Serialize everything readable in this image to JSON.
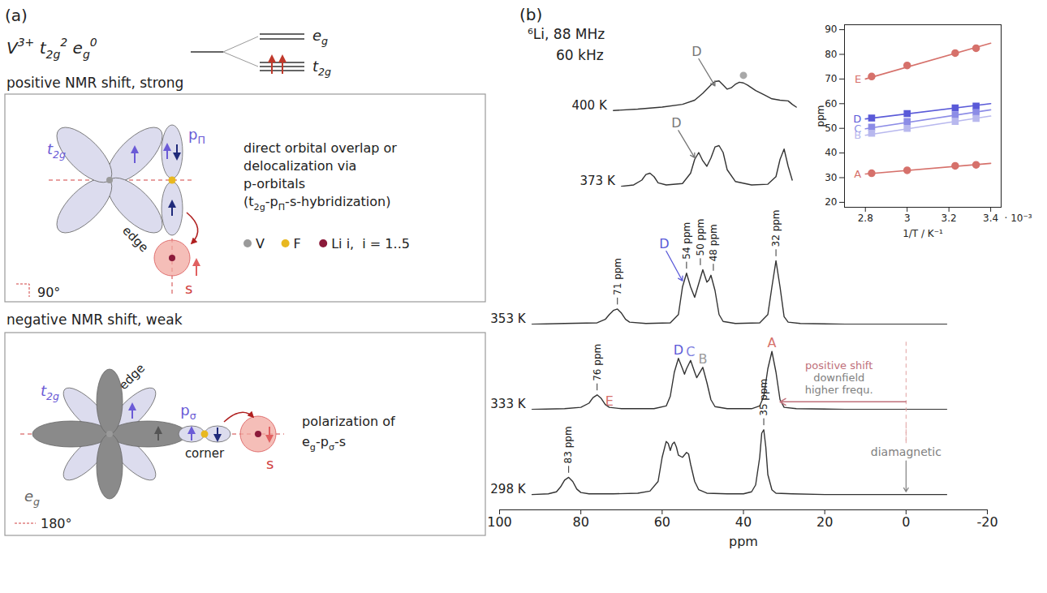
{
  "diagram": {
    "label": "(a)",
    "configuration": [
      [
        "V",
        null,
        "3+"
      ],
      [
        " t",
        "2g",
        "2"
      ],
      [
        " e",
        "g",
        "0"
      ]
    ],
    "levels": {
      "upper": [
        [
          "e",
          "g",
          null
        ]
      ],
      "lower": [
        [
          "t",
          "2g",
          null
        ]
      ],
      "electrons_color": "#c0392b"
    },
    "positive": {
      "heading": "positive NMR shift, strong",
      "orbital": [
        [
          "t",
          "2g",
          null
        ]
      ],
      "bond": "edge",
      "p_orbital": [
        [
          "p",
          "Π",
          null
        ]
      ],
      "s": "s",
      "angle": "90°",
      "description": [
        [
          [
            "direct orbital overlap or",
            null,
            null
          ]
        ],
        [
          [
            "delocalization via",
            null,
            null
          ]
        ],
        [
          [
            "p-orbitals",
            null,
            null
          ]
        ],
        [
          [
            "(t",
            "2g",
            null
          ],
          [
            "-p",
            "Π",
            null
          ],
          [
            "-s-hybridization)",
            null,
            null
          ]
        ]
      ]
    },
    "legend": [
      {
        "label": "V",
        "color": "#9a9a9a"
      },
      {
        "label": "F",
        "color": "#e8b820"
      },
      {
        "label": "Li i,  i = 1..5",
        "color": "#8b1a3a"
      }
    ],
    "negative": {
      "heading": "negative NMR shift, weak",
      "orbital": [
        [
          "t",
          "2g",
          null
        ]
      ],
      "eg": [
        [
          "e",
          "g",
          null
        ]
      ],
      "bond": "edge",
      "corner": "corner",
      "p_orbital": [
        [
          "p",
          "σ",
          null
        ]
      ],
      "s": "s",
      "angle": "180°",
      "description": [
        [
          [
            "polarization of",
            null,
            null
          ]
        ],
        [
          [
            "e",
            "g",
            null
          ],
          [
            "-p",
            "σ",
            null
          ],
          [
            "-s",
            null,
            null
          ]
        ]
      ]
    }
  },
  "chart_data": [
    {
      "type": "line",
      "title": "(b)",
      "subtitle": [
        "⁶Li, 88 MHz",
        "60 kHz"
      ],
      "x_label": "ppm",
      "xlim": [
        100,
        -20
      ],
      "xticks": [
        100,
        80,
        60,
        40,
        20,
        0,
        -20
      ],
      "ylim": [
        0,
        1
      ],
      "tick_labels": "x",
      "color": "#333333",
      "series": [
        {
          "name": "400 K",
          "x": [
            72,
            66,
            60,
            55,
            52,
            50,
            48,
            47,
            46,
            45,
            44,
            43,
            42,
            41,
            40,
            39,
            37,
            35,
            33,
            31,
            29,
            28,
            27
          ],
          "values": [
            0.05,
            0.07,
            0.1,
            0.14,
            0.2,
            0.3,
            0.42,
            0.47,
            0.48,
            0.42,
            0.36,
            0.38,
            0.43,
            0.46,
            0.45,
            0.42,
            0.34,
            0.28,
            0.22,
            0.2,
            0.19,
            0.14,
            0.1
          ],
          "peak_labels": [],
          "letters": [],
          "arrow_labels": [
            {
              "x": 46,
              "label": "D",
              "color": "#777777"
            }
          ],
          "markers": [
            {
              "x": 40,
              "color": "#a8a8a8"
            }
          ]
        },
        {
          "name": "373 K",
          "x": [
            70,
            67,
            65,
            64,
            63,
            62,
            61,
            59,
            55,
            53,
            52,
            51,
            50,
            49,
            48,
            47,
            46,
            45,
            44,
            42,
            38,
            34,
            32,
            31,
            30,
            29,
            28
          ],
          "values": [
            0.01,
            0.03,
            0.1,
            0.18,
            0.2,
            0.15,
            0.06,
            0.03,
            0.05,
            0.2,
            0.4,
            0.5,
            0.38,
            0.3,
            0.42,
            0.58,
            0.6,
            0.5,
            0.25,
            0.08,
            0.03,
            0.04,
            0.15,
            0.4,
            0.55,
            0.3,
            0.1
          ],
          "peak_labels": [],
          "letters": [],
          "arrow_labels": [
            {
              "x": 51,
              "label": "D",
              "color": "#777777"
            }
          ],
          "markers": []
        },
        {
          "name": "353 K",
          "x": [
            92,
            84,
            76,
            74,
            73,
            72,
            71,
            70,
            69,
            68,
            64,
            58,
            56,
            55,
            54,
            53,
            52,
            51,
            50,
            49,
            48.5,
            48,
            47,
            46,
            45,
            42,
            36,
            34,
            33,
            32,
            31,
            30,
            29,
            26,
            15,
            0,
            -10
          ],
          "values": [
            0.01,
            0.02,
            0.03,
            0.08,
            0.15,
            0.21,
            0.23,
            0.17,
            0.08,
            0.04,
            0.02,
            0.03,
            0.15,
            0.55,
            0.75,
            0.55,
            0.4,
            0.6,
            0.8,
            0.62,
            0.65,
            0.72,
            0.5,
            0.15,
            0.05,
            0.02,
            0.03,
            0.15,
            0.55,
            0.93,
            0.55,
            0.12,
            0.04,
            0.02,
            0.01,
            0.01,
            0.01
          ],
          "peak_labels": [
            {
              "x": 71,
              "label": "71 ppm"
            },
            {
              "x": 54,
              "label": "54 ppm"
            },
            {
              "x": 50,
              "label": "50 ppm"
            },
            {
              "x": 48,
              "label": "48 ppm"
            },
            {
              "x": 32,
              "label": "32 ppm"
            }
          ],
          "letters": [],
          "arrow_labels": [
            {
              "x": 54,
              "label": "D",
              "color": "#5a5ad8"
            }
          ],
          "markers": []
        },
        {
          "name": "333 K",
          "x": [
            92,
            84,
            80,
            78,
            77,
            76,
            75,
            74,
            73,
            70,
            62,
            59,
            58,
            57,
            56,
            55,
            54.5,
            54,
            53,
            52,
            51.5,
            51,
            50,
            49,
            48,
            47,
            44,
            38,
            36,
            35,
            34,
            33,
            32,
            31,
            30,
            27,
            15,
            0,
            -10
          ],
          "values": [
            0.01,
            0.02,
            0.04,
            0.1,
            0.18,
            0.22,
            0.17,
            0.08,
            0.04,
            0.02,
            0.02,
            0.06,
            0.2,
            0.55,
            0.75,
            0.6,
            0.52,
            0.6,
            0.72,
            0.55,
            0.47,
            0.52,
            0.62,
            0.4,
            0.15,
            0.05,
            0.02,
            0.02,
            0.06,
            0.2,
            0.6,
            0.85,
            0.55,
            0.15,
            0.04,
            0.02,
            0.01,
            0.01,
            0.01
          ],
          "peak_labels": [
            {
              "x": 76,
              "label": "76 ppm"
            }
          ],
          "letters": [
            {
              "x": 76,
              "label": "E",
              "color": "#d6716b"
            },
            {
              "x": 56,
              "label": "D",
              "color": "#5a5ad8"
            },
            {
              "x": 53,
              "label": "C",
              "color": "#8080e0"
            },
            {
              "x": 50,
              "label": "B",
              "color": "#9a9a9a"
            },
            {
              "x": 33,
              "label": "A",
              "color": "#d6716b"
            }
          ],
          "arrow_labels": [],
          "markers": [],
          "shift_arrow": {
            "from": 0,
            "to": 33,
            "color": "#c0707a",
            "texts": [
              {
                "text": "positive shift",
                "color": "#c0707a"
              },
              {
                "text": "downfield",
                "color": "#808080"
              },
              {
                "text": "higher frequ.",
                "color": "#808080"
              }
            ]
          }
        },
        {
          "name": "298 K",
          "x": [
            92,
            88,
            86,
            85,
            84,
            83,
            82,
            81,
            80,
            78,
            72,
            66,
            63,
            61,
            60,
            59,
            58.5,
            58,
            57.5,
            57,
            56.5,
            56,
            55,
            54,
            53.5,
            53,
            52,
            51,
            49,
            44,
            40,
            38,
            37,
            36,
            35.5,
            35,
            34.5,
            34,
            33,
            32,
            28,
            20,
            10,
            0,
            -10
          ],
          "values": [
            0.01,
            0.02,
            0.05,
            0.12,
            0.22,
            0.26,
            0.2,
            0.09,
            0.04,
            0.02,
            0.02,
            0.03,
            0.06,
            0.2,
            0.55,
            0.78,
            0.75,
            0.65,
            0.74,
            0.77,
            0.7,
            0.58,
            0.55,
            0.62,
            0.6,
            0.45,
            0.2,
            0.08,
            0.03,
            0.02,
            0.02,
            0.05,
            0.15,
            0.55,
            0.9,
            0.95,
            0.7,
            0.3,
            0.08,
            0.03,
            0.02,
            0.01,
            0.01,
            0.01,
            0.01
          ],
          "peak_labels": [
            {
              "x": 83,
              "label": "83 ppm"
            },
            {
              "x": 35,
              "label": "35 ppm"
            }
          ],
          "letters": [],
          "arrow_labels": [],
          "markers": [],
          "diamagnetic": {
            "x": 0,
            "label": "diamagnetic",
            "color": "#808080"
          }
        }
      ]
    },
    {
      "type": "scatter",
      "x_label": "1/T / K⁻¹",
      "x_multiplier": "· 10⁻³",
      "y_label": "ppm",
      "xlim": [
        2.7,
        3.45
      ],
      "xticks": [
        2.8,
        3,
        3.2,
        3.4
      ],
      "ylim": [
        18,
        92
      ],
      "yticks": [
        20,
        30,
        40,
        50,
        60,
        70,
        80,
        90
      ],
      "series": [
        {
          "name": "E",
          "color": "#d6716b",
          "marker": "circle",
          "x": [
            2.83,
            3.0,
            3.23,
            3.33
          ],
          "values": [
            71,
            75.5,
            80.5,
            82.5
          ],
          "fit": {
            "x": [
              2.8,
              3.4
            ],
            "values": [
              70,
              84.5
            ]
          }
        },
        {
          "name": "D",
          "color": "#5a5ad8",
          "marker": "square",
          "x": [
            2.83,
            3.0,
            3.23,
            3.33
          ],
          "values": [
            54.2,
            56,
            58.3,
            59
          ],
          "fit": {
            "x": [
              2.8,
              3.4
            ],
            "values": [
              53.8,
              60
            ]
          }
        },
        {
          "name": "C",
          "color": "#8c8ce6",
          "marker": "square",
          "x": [
            2.83,
            3.0,
            3.23,
            3.33
          ],
          "values": [
            50.5,
            52.8,
            55.5,
            56.5
          ],
          "fit": {
            "x": [
              2.8,
              3.4
            ],
            "values": [
              49.8,
              57.5
            ]
          }
        },
        {
          "name": "B",
          "color": "#b8b8ee",
          "marker": "square",
          "x": [
            2.83,
            3.0,
            3.23,
            3.33
          ],
          "values": [
            48,
            50,
            52.8,
            54
          ],
          "fit": {
            "x": [
              2.8,
              3.4
            ],
            "values": [
              47.2,
              55
            ]
          }
        },
        {
          "name": "A",
          "color": "#d6716b",
          "marker": "circle",
          "x": [
            2.83,
            3.0,
            3.23,
            3.33
          ],
          "values": [
            31.8,
            33,
            34.8,
            35.2
          ],
          "fit": {
            "x": [
              2.8,
              3.4
            ],
            "values": [
              31.5,
              35.8
            ]
          }
        }
      ]
    }
  ]
}
